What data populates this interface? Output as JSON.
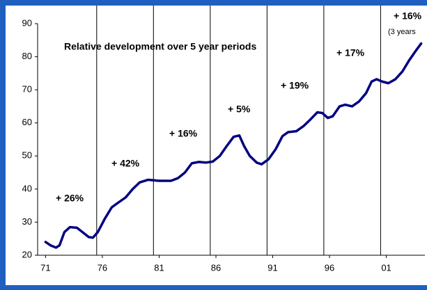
{
  "chart_data": {
    "type": "line",
    "annotations": [
      "Relative development over 5 year periods",
      "+ 26%",
      "+ 42%",
      "+ 16%",
      "+ 5%",
      "+ 19%",
      "+ 17%",
      "+ 16%",
      "(3 years"
    ],
    "x": [
      1971.0,
      1971.43,
      1971.92,
      1972.23,
      1972.66,
      1973.15,
      1973.76,
      1974.25,
      1974.8,
      1975.17,
      1975.6,
      1976.21,
      1976.83,
      1977.44,
      1978.06,
      1978.67,
      1979.28,
      1980.02,
      1981.0,
      1982.04,
      1982.66,
      1983.27,
      1983.88,
      1984.5,
      1985.11,
      1985.72,
      1986.34,
      1986.95,
      1987.56,
      1988.06,
      1988.48,
      1988.98,
      1989.59,
      1990.02,
      1990.63,
      1991.25,
      1991.86,
      1992.35,
      1993.09,
      1993.7,
      1994.31,
      1994.93,
      1995.36,
      1995.85,
      1996.28,
      1996.89,
      1997.38,
      1997.99,
      1998.61,
      1999.22,
      1999.71,
      2000.14,
      2000.63,
      2001.18,
      2001.8,
      2002.41,
      2003.03,
      2003.64,
      2004.07
    ],
    "series": [
      {
        "color": "#000080",
        "values": [
          24,
          23,
          22.3,
          23,
          27,
          28.5,
          28.3,
          27,
          25.5,
          25.3,
          27,
          31,
          34.5,
          36,
          37.5,
          40,
          42,
          42.8,
          42.5,
          42.5,
          43.3,
          45,
          47.8,
          48.2,
          48,
          48.3,
          50,
          53,
          55.8,
          56.2,
          53,
          50,
          48,
          47.5,
          49,
          52,
          56,
          57.2,
          57.5,
          59,
          61,
          63.2,
          63,
          61.5,
          62,
          65,
          65.5,
          65,
          66.5,
          69,
          72.5,
          73.2,
          72.5,
          72,
          73.2,
          75.5,
          79,
          82,
          84
        ]
      }
    ],
    "vlines": [
      1975.5,
      1980.5,
      1985.5,
      1990.5,
      1995.5,
      2000.5
    ],
    "xlim": [
      1970.3,
      2004.4
    ],
    "xticks": [
      {
        "value": 1971,
        "label": "71"
      },
      {
        "value": 1976,
        "label": "76"
      },
      {
        "value": 1981,
        "label": "81"
      },
      {
        "value": 1986,
        "label": "86"
      },
      {
        "value": 1991,
        "label": "91"
      },
      {
        "value": 1996,
        "label": "96"
      },
      {
        "value": 2001,
        "label": "01"
      }
    ],
    "ylim": [
      20,
      90
    ],
    "yticks": [
      20,
      30,
      40,
      50,
      60,
      70,
      80,
      90
    ]
  }
}
